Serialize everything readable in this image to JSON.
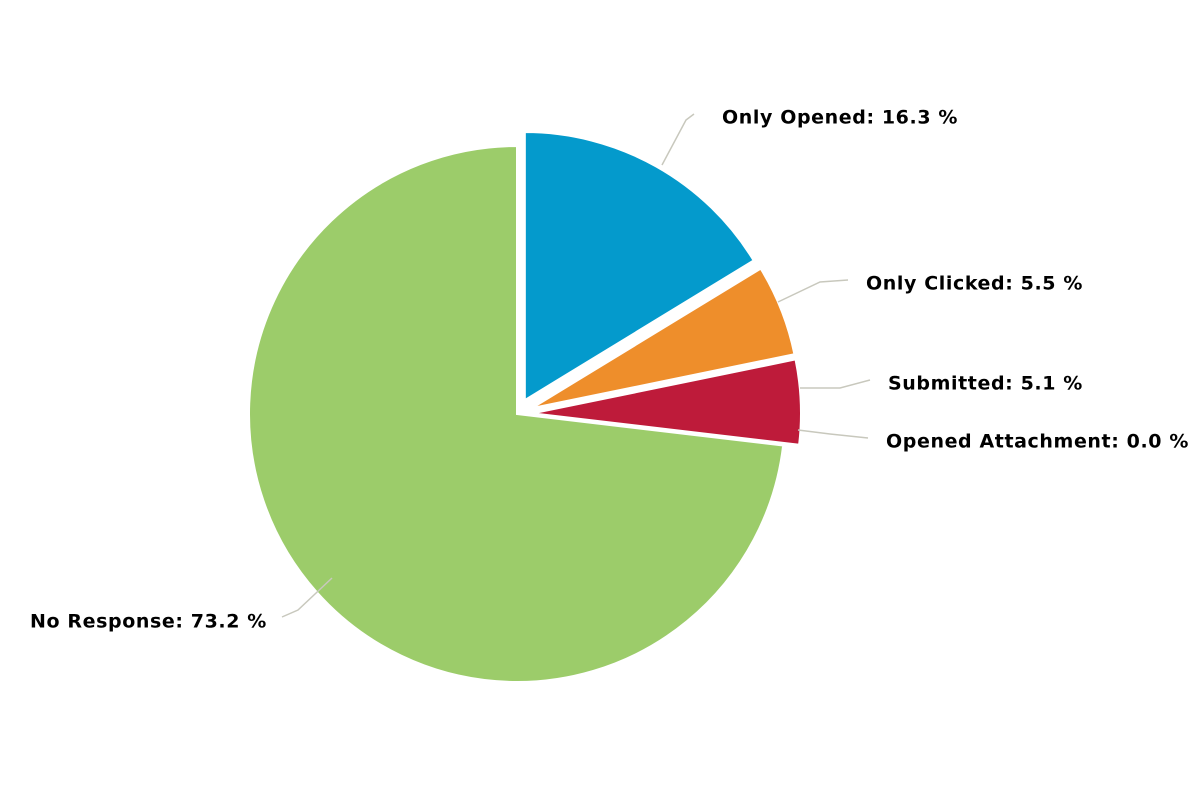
{
  "chart_data": {
    "type": "pie",
    "start_angle_deg": 0,
    "direction": "clockwise",
    "exploded": [
      "Only Opened",
      "Only Clicked",
      "Submitted",
      "Opened Attachment"
    ],
    "slices": [
      {
        "name": "Only Opened",
        "value": 16.3,
        "color": "#049ACC",
        "label": "Only Opened: 16.3 %"
      },
      {
        "name": "Only Clicked",
        "value": 5.5,
        "color": "#EE8E2B",
        "label": "Only Clicked: 5.5 %"
      },
      {
        "name": "Submitted",
        "value": 5.1,
        "color": "#BE1B3A",
        "label": "Submitted: 5.1 %"
      },
      {
        "name": "Opened Attachment",
        "value": 0.0,
        "color": "#7B3F98",
        "label": "Opened Attachment: 0.0 %"
      },
      {
        "name": "No Response",
        "value": 73.2,
        "color": "#9CCC6A",
        "label": "No Response: 73.2 %"
      }
    ]
  }
}
